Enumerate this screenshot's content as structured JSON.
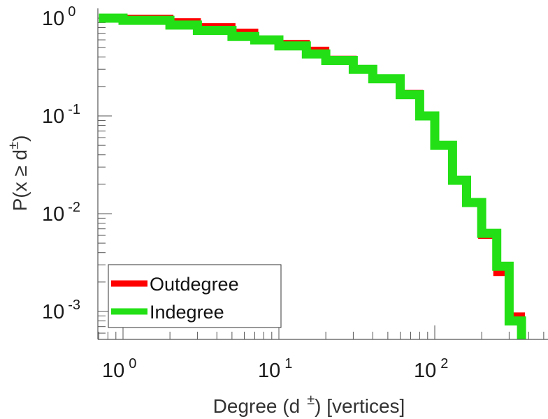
{
  "chart_data": {
    "type": "line",
    "xscale": "log",
    "yscale": "log",
    "xlim": [
      0.7,
      600
    ],
    "ylim": [
      0.00055,
      1.2
    ],
    "grid": false,
    "legend_position": "bottom-left",
    "xlabel": {
      "main": "Degree (d",
      "sup": "±",
      "tail": ") [vertices]"
    },
    "ylabel": {
      "main": "P(x ≥ d",
      "sup": "±",
      "tail": ")"
    },
    "xticks": [
      {
        "base": "10",
        "exp": "0",
        "value": 1
      },
      {
        "base": "10",
        "exp": "1",
        "value": 10
      },
      {
        "base": "10",
        "exp": "2",
        "value": 100
      }
    ],
    "yticks": [
      {
        "base": "10",
        "exp": "0",
        "value": 1
      },
      {
        "base": "10",
        "exp": "-1",
        "value": 0.1
      },
      {
        "base": "10",
        "exp": "-2",
        "value": 0.01
      },
      {
        "base": "10",
        "exp": "-3",
        "value": 0.001
      }
    ],
    "series": [
      {
        "name": "Outdegree",
        "color": "#ff0000",
        "x": [
          1,
          2,
          3,
          5,
          7,
          10,
          15,
          20,
          30,
          40,
          60,
          80,
          100,
          130,
          160,
          200,
          250,
          300,
          360
        ],
        "y": [
          1,
          0.92,
          0.82,
          0.72,
          0.6,
          0.55,
          0.47,
          0.38,
          0.3,
          0.24,
          0.17,
          0.1,
          0.05,
          0.022,
          0.013,
          0.006,
          0.0025,
          0.0009,
          0.0007
        ]
      },
      {
        "name": "Indegree",
        "color": "#22e015",
        "x": [
          0.7,
          1,
          2,
          3,
          5,
          7,
          10,
          15,
          20,
          30,
          40,
          60,
          80,
          100,
          130,
          160,
          200,
          250,
          300,
          360
        ],
        "y": [
          1,
          0.95,
          0.85,
          0.75,
          0.65,
          0.6,
          0.52,
          0.43,
          0.37,
          0.3,
          0.24,
          0.165,
          0.1,
          0.05,
          0.022,
          0.013,
          0.0063,
          0.0029,
          0.0008,
          0.0007
        ]
      }
    ]
  }
}
